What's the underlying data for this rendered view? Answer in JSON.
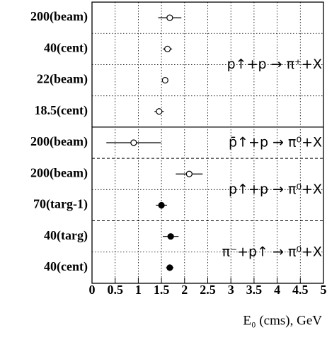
{
  "chart_data": {
    "type": "dot",
    "categories": [
      "200(beam)",
      "40(cent)",
      "22(beam)",
      "18.5(cent)",
      "200(beam)",
      "200(beam)",
      "70(targ-1)",
      "40(targ)",
      "40(cent)"
    ],
    "values": [
      1.68,
      1.63,
      1.58,
      1.45,
      0.9,
      2.1,
      1.5,
      1.7,
      1.68
    ],
    "errors": [
      0.25,
      0.1,
      0.05,
      0.1,
      0.59,
      0.29,
      0.12,
      0.17,
      0.08
    ],
    "markers": [
      "open",
      "open",
      "open",
      "open",
      "open",
      "open",
      "filled",
      "filled",
      "filled"
    ],
    "color": "#000000",
    "xlim": [
      0,
      5
    ],
    "xticks": [
      0,
      0.5,
      1,
      1.5,
      2,
      2.5,
      3,
      3.5,
      4,
      4.5,
      5
    ],
    "xlabel": "E₀ (cms), GeV",
    "grid": true,
    "annotations": [
      "p↑+p → π⁺+X",
      "p̄↑+p → π⁰+X",
      "p↑+p → π⁰+X",
      "π⁻+p↑ → π⁰+X"
    ]
  }
}
